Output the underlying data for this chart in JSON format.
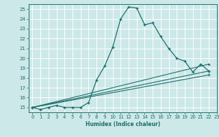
{
  "xlabel": "Humidex (Indice chaleur)",
  "xlim": [
    -0.5,
    23
  ],
  "ylim": [
    14.5,
    25.5
  ],
  "yticks": [
    15,
    16,
    17,
    18,
    19,
    20,
    21,
    22,
    23,
    24,
    25
  ],
  "xticks": [
    0,
    1,
    2,
    3,
    4,
    5,
    6,
    7,
    8,
    9,
    10,
    11,
    12,
    13,
    14,
    15,
    16,
    17,
    18,
    19,
    20,
    21,
    22,
    23
  ],
  "bg_color": "#cde8e8",
  "grid_color": "#ffffff",
  "line_color": "#1a6e6a",
  "series": [
    {
      "x": [
        0,
        1,
        2,
        3,
        4,
        5,
        6,
        7,
        8,
        9,
        10,
        11,
        12,
        13,
        14,
        15,
        16,
        17,
        18,
        19,
        20,
        21,
        22
      ],
      "y": [
        15.0,
        14.8,
        15.0,
        15.2,
        15.0,
        15.0,
        15.0,
        15.5,
        17.8,
        19.2,
        21.1,
        24.0,
        25.2,
        25.1,
        23.4,
        23.6,
        22.2,
        21.0,
        20.0,
        19.7,
        18.6,
        19.4,
        18.7
      ]
    },
    {
      "x": [
        0,
        22
      ],
      "y": [
        15.0,
        19.4
      ]
    },
    {
      "x": [
        0,
        22
      ],
      "y": [
        15.0,
        18.7
      ]
    },
    {
      "x": [
        0,
        22
      ],
      "y": [
        15.0,
        18.3
      ]
    }
  ]
}
